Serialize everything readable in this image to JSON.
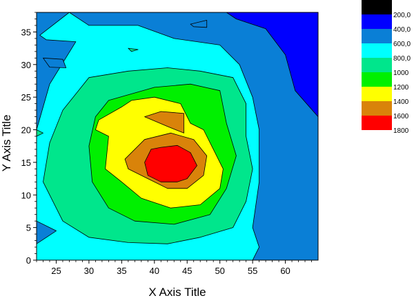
{
  "chart_data": {
    "type": "contour",
    "xlabel": "X Axis Title",
    "ylabel": "Y Axis Title",
    "xlim": [
      22,
      65
    ],
    "ylim": [
      0,
      38
    ],
    "x_ticks": [
      25,
      30,
      35,
      40,
      45,
      50,
      55,
      60
    ],
    "y_ticks": [
      0,
      5,
      10,
      15,
      20,
      25,
      30,
      35
    ],
    "peak": {
      "x": 42.5,
      "y": 15.5,
      "value": 1850
    },
    "legend": {
      "position": "right",
      "levels": [
        {
          "label": "",
          "color": "#000000"
        },
        {
          "label": "200,0",
          "color": "#0000ff"
        },
        {
          "label": "400,0",
          "color": "#0a7fd6"
        },
        {
          "label": "600,0",
          "color": "#00ffff"
        },
        {
          "label": "800,0",
          "color": "#00e68c"
        },
        {
          "label": "1000",
          "color": "#00f000"
        },
        {
          "label": "1200",
          "color": "#ffff00"
        },
        {
          "label": "1400",
          "color": "#d9830a"
        },
        {
          "label": "1600",
          "color": "#ff0000"
        },
        {
          "label": "1800",
          "color": ""
        }
      ]
    },
    "regions": [
      {
        "level": 400,
        "color": "#0a7fd6",
        "points": [
          [
            22,
            38
          ],
          [
            65,
            38
          ],
          [
            65,
            0
          ],
          [
            22,
            0
          ]
        ]
      },
      {
        "level": 200,
        "color": "#0000ff",
        "points": [
          [
            51,
            38
          ],
          [
            65,
            38
          ],
          [
            65,
            22
          ],
          [
            61.5,
            26
          ],
          [
            60,
            31.5
          ],
          [
            57,
            35.5
          ],
          [
            52.5,
            37
          ]
        ]
      },
      {
        "level": 600,
        "color": "#00ffff",
        "points": [
          [
            27,
            38
          ],
          [
            30,
            36
          ],
          [
            37.5,
            36
          ],
          [
            43,
            34
          ],
          [
            50,
            33
          ],
          [
            53,
            30
          ],
          [
            55,
            25
          ],
          [
            56,
            20
          ],
          [
            56,
            12
          ],
          [
            55,
            5
          ],
          [
            56,
            2
          ],
          [
            55,
            0
          ],
          [
            22,
            0
          ],
          [
            22,
            2.5
          ],
          [
            25,
            4.5
          ],
          [
            22,
            6
          ],
          [
            22,
            20
          ],
          [
            24,
            27
          ],
          [
            28,
            33.5
          ],
          [
            23.5,
            33.8
          ],
          [
            22.5,
            34.5
          ]
        ]
      },
      {
        "level": 800,
        "color": "#00e68c",
        "points": [
          [
            30,
            28
          ],
          [
            36,
            29
          ],
          [
            42,
            29.5
          ],
          [
            47,
            29
          ],
          [
            52,
            28
          ],
          [
            54,
            24
          ],
          [
            54,
            19
          ],
          [
            55,
            14
          ],
          [
            54,
            9
          ],
          [
            52,
            5
          ],
          [
            47,
            3.5
          ],
          [
            42,
            2.5
          ],
          [
            36,
            2.7
          ],
          [
            30,
            3.5
          ],
          [
            26,
            6
          ],
          [
            23,
            12
          ],
          [
            24,
            18
          ],
          [
            26,
            23
          ]
        ]
      },
      {
        "level": 1000,
        "color": "#00f000",
        "points": [
          [
            33,
            24.5
          ],
          [
            40,
            26.5
          ],
          [
            45.5,
            27
          ],
          [
            50,
            26
          ],
          [
            51,
            21
          ],
          [
            52.5,
            16
          ],
          [
            51,
            11
          ],
          [
            48.5,
            7
          ],
          [
            43,
            5.5
          ],
          [
            37,
            6
          ],
          [
            33,
            8
          ],
          [
            30.5,
            12
          ],
          [
            30,
            17.5
          ],
          [
            31,
            22
          ]
        ]
      },
      {
        "level": 1200,
        "color": "#ffff00",
        "points": [
          [
            31.5,
            21.5
          ],
          [
            35,
            23.5
          ],
          [
            36.5,
            24.5
          ],
          [
            40,
            25
          ],
          [
            44,
            24
          ],
          [
            45.5,
            21
          ],
          [
            47.5,
            20
          ],
          [
            49,
            17
          ],
          [
            50.5,
            14
          ],
          [
            50,
            11
          ],
          [
            47,
            8.5
          ],
          [
            42.5,
            8
          ],
          [
            38,
            9.5
          ],
          [
            35,
            12
          ],
          [
            32.5,
            14
          ],
          [
            33,
            19
          ],
          [
            31,
            20
          ]
        ]
      },
      {
        "level": 1400,
        "color": "#d9830a",
        "points": [
          [
            35.5,
            15.5
          ],
          [
            38.5,
            18.5
          ],
          [
            42.5,
            19.5
          ],
          [
            46,
            18.5
          ],
          [
            48,
            16
          ],
          [
            47.5,
            13
          ],
          [
            45,
            11
          ],
          [
            42,
            11
          ],
          [
            39,
            12.5
          ],
          [
            36,
            14
          ]
        ]
      },
      {
        "level": 1400,
        "color": "#d9830a",
        "points": [
          [
            38.5,
            22
          ],
          [
            42,
            20.5
          ],
          [
            44.5,
            19.5
          ],
          [
            44.5,
            22.5
          ],
          [
            41,
            22.8
          ]
        ]
      },
      {
        "level": 1600,
        "color": "#ff0000",
        "points": [
          [
            39.5,
            17
          ],
          [
            41,
            17.3
          ],
          [
            43.5,
            17.6
          ],
          [
            45.5,
            16.5
          ],
          [
            46.5,
            14.5
          ],
          [
            45,
            12.5
          ],
          [
            43.5,
            12
          ],
          [
            41,
            12
          ],
          [
            39,
            13
          ],
          [
            38.5,
            15
          ]
        ]
      }
    ],
    "small_features": [
      {
        "color": "#00e68c",
        "points": [
          [
            22,
            20
          ],
          [
            23,
            19.5
          ],
          [
            22,
            19
          ]
        ]
      },
      {
        "color": "#00e68c",
        "points": [
          [
            36,
            32.5
          ],
          [
            37.5,
            32.3
          ],
          [
            36.5,
            32
          ]
        ]
      },
      {
        "color": "#0a7fd6",
        "points": [
          [
            23,
            31
          ],
          [
            26,
            30.8
          ],
          [
            26.5,
            29.5
          ],
          [
            24,
            29.6
          ]
        ]
      },
      {
        "color": "#0a7fd6",
        "points": [
          [
            45.5,
            36.2
          ],
          [
            48,
            36.8
          ],
          [
            48,
            35.7
          ],
          [
            46,
            35.8
          ]
        ]
      }
    ]
  }
}
